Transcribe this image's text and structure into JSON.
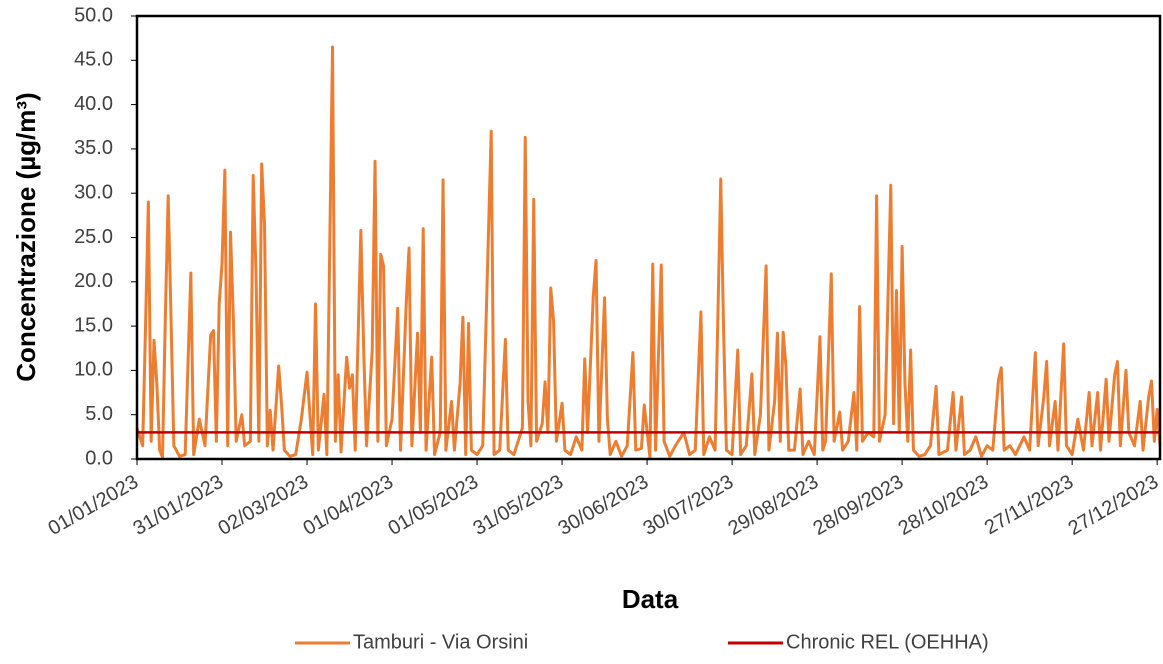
{
  "chart_data": {
    "type": "line",
    "x_label": "Data",
    "y_label": "Concentrazione (µg/m³)",
    "xlim": [
      "01/01/2023",
      "28/12/2023"
    ],
    "xticks": [
      "01/01/2023",
      "31/01/2023",
      "02/03/2023",
      "01/04/2023",
      "01/05/2023",
      "31/05/2023",
      "30/06/2023",
      "30/07/2023",
      "29/08/2023",
      "28/09/2023",
      "28/10/2023",
      "27/11/2023",
      "27/12/2023"
    ],
    "ylim": [
      0,
      50
    ],
    "yticks": [
      {
        "value": 0,
        "label": "0.0"
      },
      {
        "value": 5,
        "label": "5.0"
      },
      {
        "value": 10,
        "label": "10.0"
      },
      {
        "value": 15,
        "label": "15.0"
      },
      {
        "value": 20,
        "label": "20.0"
      },
      {
        "value": 25,
        "label": "25.0"
      },
      {
        "value": 30,
        "label": "30.0"
      },
      {
        "value": 35,
        "label": "35.0"
      },
      {
        "value": 40,
        "label": "40.0"
      },
      {
        "value": 45,
        "label": "45.0"
      },
      {
        "value": 50,
        "label": "50.0"
      }
    ],
    "grid": false,
    "x": [
      "01/01/2023",
      "03/01/2023",
      "04/01/2023",
      "05/01/2023",
      "06/01/2023",
      "07/01/2023",
      "08/01/2023",
      "09/01/2023",
      "10/01/2023",
      "11/01/2023",
      "12/01/2023",
      "13/01/2023",
      "14/01/2023",
      "16/01/2023",
      "18/01/2023",
      "20/01/2023",
      "21/01/2023",
      "23/01/2023",
      "25/01/2023",
      "27/01/2023",
      "28/01/2023",
      "29/01/2023",
      "30/01/2023",
      "31/01/2023",
      "01/02/2023",
      "02/02/2023",
      "03/02/2023",
      "04/02/2023",
      "05/02/2023",
      "07/02/2023",
      "08/02/2023",
      "10/02/2023",
      "11/02/2023",
      "12/02/2023",
      "13/02/2023",
      "14/02/2023",
      "15/02/2023",
      "16/02/2023",
      "17/02/2023",
      "18/02/2023",
      "20/02/2023",
      "21/02/2023",
      "22/02/2023",
      "24/02/2023",
      "26/02/2023",
      "28/02/2023",
      "02/03/2023",
      "04/03/2023",
      "05/03/2023",
      "06/03/2023",
      "08/03/2023",
      "09/03/2023",
      "11/03/2023",
      "12/03/2023",
      "13/03/2023",
      "14/03/2023",
      "16/03/2023",
      "17/03/2023",
      "18/03/2023",
      "19/03/2023",
      "21/03/2023",
      "22/03/2023",
      "23/03/2023",
      "25/03/2023",
      "26/03/2023",
      "27/03/2023",
      "28/03/2023",
      "29/03/2023",
      "30/03/2023",
      "01/04/2023",
      "03/04/2023",
      "04/04/2023",
      "06/04/2023",
      "07/04/2023",
      "08/04/2023",
      "10/04/2023",
      "11/04/2023",
      "12/04/2023",
      "13/04/2023",
      "15/04/2023",
      "16/04/2023",
      "18/04/2023",
      "19/04/2023",
      "20/04/2023",
      "22/04/2023",
      "23/04/2023",
      "25/04/2023",
      "26/04/2023",
      "27/04/2023",
      "28/04/2023",
      "29/04/2023",
      "01/05/2023",
      "03/05/2023",
      "06/05/2023",
      "07/05/2023",
      "09/05/2023",
      "11/05/2023",
      "12/05/2023",
      "14/05/2023",
      "17/05/2023",
      "18/05/2023",
      "19/05/2023",
      "20/05/2023",
      "21/05/2023",
      "22/05/2023",
      "24/05/2023",
      "25/05/2023",
      "26/05/2023",
      "27/05/2023",
      "28/05/2023",
      "29/05/2023",
      "31/05/2023",
      "01/06/2023",
      "03/06/2023",
      "05/06/2023",
      "07/06/2023",
      "08/06/2023",
      "09/06/2023",
      "11/06/2023",
      "12/06/2023",
      "13/06/2023",
      "15/06/2023",
      "16/06/2023",
      "17/06/2023",
      "19/06/2023",
      "21/06/2023",
      "23/06/2023",
      "25/06/2023",
      "26/06/2023",
      "28/06/2023",
      "29/06/2023",
      "01/07/2023",
      "02/07/2023",
      "03/07/2023",
      "05/07/2023",
      "06/07/2023",
      "08/07/2023",
      "10/07/2023",
      "13/07/2023",
      "15/07/2023",
      "17/07/2023",
      "19/07/2023",
      "20/07/2023",
      "22/07/2023",
      "24/07/2023",
      "26/07/2023",
      "27/07/2023",
      "28/07/2023",
      "30/07/2023",
      "01/08/2023",
      "02/08/2023",
      "04/08/2023",
      "06/08/2023",
      "07/08/2023",
      "09/08/2023",
      "11/08/2023",
      "12/08/2023",
      "14/08/2023",
      "15/08/2023",
      "16/08/2023",
      "17/08/2023",
      "18/08/2023",
      "19/08/2023",
      "21/08/2023",
      "23/08/2023",
      "24/08/2023",
      "26/08/2023",
      "28/08/2023",
      "30/08/2023",
      "31/08/2023",
      "01/09/2023",
      "03/09/2023",
      "04/09/2023",
      "06/09/2023",
      "07/09/2023",
      "09/09/2023",
      "11/09/2023",
      "12/09/2023",
      "13/09/2023",
      "14/09/2023",
      "16/09/2023",
      "18/09/2023",
      "19/09/2023",
      "20/09/2023",
      "22/09/2023",
      "23/09/2023",
      "24/09/2023",
      "25/09/2023",
      "26/09/2023",
      "27/09/2023",
      "28/09/2023",
      "29/09/2023",
      "30/09/2023",
      "01/10/2023",
      "02/10/2023",
      "04/10/2023",
      "06/10/2023",
      "08/10/2023",
      "10/10/2023",
      "11/10/2023",
      "14/10/2023",
      "16/10/2023",
      "17/10/2023",
      "19/10/2023",
      "20/10/2023",
      "22/10/2023",
      "24/10/2023",
      "26/10/2023",
      "28/10/2023",
      "30/10/2023",
      "01/11/2023",
      "02/11/2023",
      "03/11/2023",
      "05/11/2023",
      "07/11/2023",
      "10/11/2023",
      "12/11/2023",
      "14/11/2023",
      "15/11/2023",
      "17/11/2023",
      "18/11/2023",
      "19/11/2023",
      "21/11/2023",
      "22/11/2023",
      "24/11/2023",
      "25/11/2023",
      "27/11/2023",
      "29/11/2023",
      "01/12/2023",
      "03/12/2023",
      "04/12/2023",
      "06/12/2023",
      "07/12/2023",
      "09/12/2023",
      "10/12/2023",
      "12/12/2023",
      "13/12/2023",
      "14/12/2023",
      "16/12/2023",
      "17/12/2023",
      "19/12/2023",
      "21/12/2023",
      "22/12/2023",
      "24/12/2023",
      "25/12/2023",
      "26/12/2023",
      "27/12/2023",
      "28/12/2023"
    ],
    "series": [
      {
        "name": "Tamburi - Via Orsini",
        "color": "#ed7d31",
        "values": [
          3.5,
          1.5,
          14.8,
          29,
          2,
          13.4,
          8.5,
          1,
          0.2,
          16,
          29.7,
          16,
          1.5,
          0.3,
          0.5,
          21,
          0.5,
          4.5,
          1.5,
          14,
          14.5,
          2,
          17.5,
          22,
          32.6,
          1.5,
          25.6,
          15.9,
          2,
          5,
          1.5,
          2,
          32,
          21,
          2,
          33.3,
          26.5,
          1.5,
          5.5,
          1,
          10.5,
          6.2,
          1,
          0.3,
          0.5,
          4.5,
          9.8,
          0.5,
          17.5,
          1,
          7.3,
          0.5,
          46.5,
          2,
          9.5,
          0.8,
          11.5,
          8,
          9.5,
          1,
          25.8,
          12.3,
          1.5,
          12.2,
          33.6,
          2,
          23.1,
          21.8,
          1.5,
          4.5,
          17,
          1,
          17.5,
          23.8,
          1.5,
          14.2,
          3,
          26,
          1,
          11.5,
          0.5,
          3,
          31.5,
          1,
          6.5,
          1,
          8.5,
          16,
          0.5,
          15.3,
          1,
          0.5,
          1.5,
          37,
          0.5,
          1,
          13.5,
          1,
          0.5,
          3.5,
          36.3,
          6.5,
          1.5,
          29.3,
          2,
          4,
          8.7,
          3,
          19.3,
          15.6,
          2,
          6.3,
          1,
          0.5,
          2.5,
          1,
          11.3,
          3,
          18.3,
          22.4,
          2,
          18.2,
          4.5,
          0.5,
          2,
          0.3,
          1.5,
          12,
          1,
          1.2,
          6.1,
          0.2,
          22,
          1,
          21.9,
          2,
          0.3,
          1.5,
          3,
          0.5,
          1,
          16.6,
          0.5,
          2.5,
          1,
          31.6,
          14.5,
          1,
          0.5,
          12.3,
          0.5,
          1.5,
          9.6,
          0.5,
          5,
          21.8,
          1,
          6.5,
          14.2,
          2,
          14.3,
          10.5,
          1,
          1,
          7.9,
          0.5,
          2,
          0.5,
          13.8,
          1,
          2,
          20.9,
          2,
          5.3,
          1,
          2,
          7.5,
          1,
          17.2,
          2,
          3,
          2.5,
          29.7,
          2,
          5,
          18,
          30.9,
          4,
          19,
          3,
          24,
          8.5,
          2,
          12.3,
          1,
          0.3,
          0.5,
          1.5,
          8.2,
          0.5,
          1,
          7.5,
          1,
          7,
          0.5,
          1,
          2.5,
          0.3,
          1.5,
          1,
          8.9,
          10.3,
          1,
          1.5,
          0.5,
          2.5,
          1,
          12,
          1.5,
          7,
          11,
          1.5,
          6.5,
          1,
          13,
          1.5,
          0.5,
          4.5,
          1,
          7.5,
          1.5,
          7.5,
          1,
          9,
          2,
          9.5,
          11,
          1.5,
          10,
          3,
          1.5,
          6.5,
          1,
          7,
          8.8,
          2,
          5.6,
          1.5
        ]
      }
    ],
    "reference_lines": [
      {
        "name": "Chronic REL (OEHHA)",
        "color": "#c00000",
        "value": 3
      }
    ]
  }
}
